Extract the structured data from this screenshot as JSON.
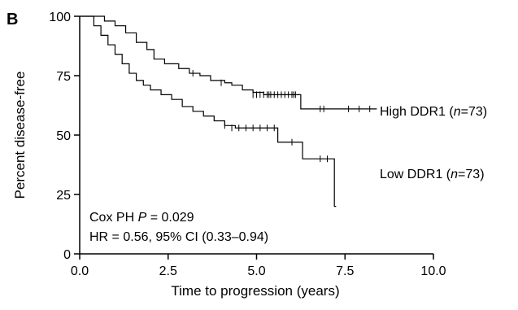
{
  "panel_label": "B",
  "chart_data": {
    "type": "line",
    "step": true,
    "title": "",
    "xlabel": "Time to progression (years)",
    "ylabel": "Percent disease-free",
    "xlim": [
      0,
      10
    ],
    "ylim": [
      0,
      100
    ],
    "xticks": [
      "0.0",
      "2.5",
      "5.0",
      "7.5",
      "10.0"
    ],
    "yticks": [
      "0",
      "25",
      "50",
      "75",
      "100"
    ],
    "grid": false,
    "series": [
      {
        "name": "High DDR1",
        "label_main": "High DDR1 (",
        "label_n": "n",
        "label_tail": "=73)",
        "x": [
          0,
          0.7,
          1.0,
          1.3,
          1.6,
          1.9,
          2.1,
          2.4,
          2.8,
          3.1,
          3.4,
          3.7,
          4.1,
          4.3,
          4.6,
          4.9,
          5.2,
          5.5,
          6.25,
          8.4
        ],
        "y": [
          100,
          98,
          96,
          93,
          89,
          86,
          82,
          80,
          78,
          76,
          75,
          73,
          72,
          71,
          69,
          68,
          67,
          67,
          61,
          61
        ],
        "censor_x": [
          3.2,
          4.0,
          4.9,
          5.0,
          5.1,
          5.2,
          5.3,
          5.35,
          5.4,
          5.5,
          5.6,
          5.7,
          5.8,
          5.9,
          6.0,
          6.05,
          6.1,
          6.8,
          6.9,
          7.6,
          7.9,
          8.2
        ],
        "censor_y": [
          76,
          72,
          67,
          67,
          67,
          67,
          67,
          67,
          67,
          67,
          67,
          67,
          67,
          67,
          67,
          67,
          67,
          61,
          61,
          61,
          61,
          61
        ]
      },
      {
        "name": "Low DDR1",
        "label_main": "Low DDR1 (",
        "label_n": "n",
        "label_tail": "=73)",
        "x": [
          0,
          0.4,
          0.6,
          0.8,
          1.0,
          1.2,
          1.4,
          1.6,
          1.8,
          2.0,
          2.3,
          2.6,
          2.9,
          3.2,
          3.5,
          3.8,
          4.1,
          4.4,
          5.6,
          6.3,
          7.2,
          7.25
        ],
        "y": [
          100,
          96,
          92,
          88,
          84,
          80,
          76,
          73,
          71,
          69,
          67,
          65,
          62,
          60,
          58,
          56,
          54,
          53,
          47,
          40,
          20,
          20
        ],
        "censor_x": [
          4.1,
          4.3,
          4.5,
          4.7,
          4.9,
          5.1,
          5.3,
          5.5,
          6.0,
          6.8,
          7.0
        ],
        "censor_y": [
          54,
          53,
          53,
          53,
          53,
          53,
          53,
          53,
          47,
          40,
          40
        ]
      }
    ],
    "annotations": {
      "cox_prefix": "Cox PH ",
      "cox_p": "P",
      "cox_value": " = 0.029",
      "hr_text": "HR = 0.56, 95% CI (0.33–0.94)"
    }
  }
}
